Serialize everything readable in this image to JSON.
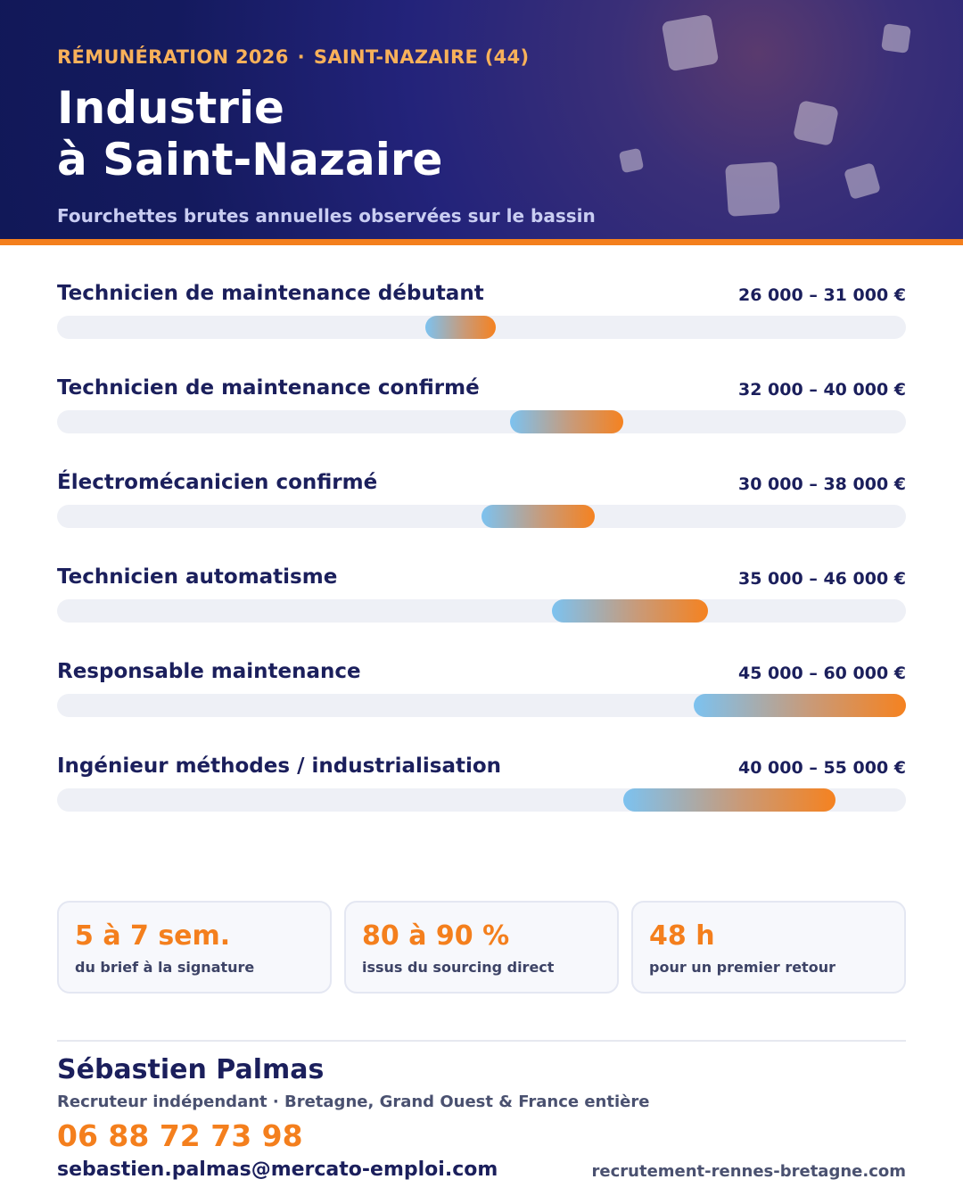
{
  "header": {
    "kicker_left": "RÉMUNÉRATION 2026",
    "kicker_sep": "·",
    "kicker_right": "SAINT-NAZAIRE (44)",
    "title_line1": "Industrie",
    "title_line2": "à Saint-Nazaire",
    "subtitle": "Fourchettes brutes annuelles observées sur le bassin"
  },
  "colors": {
    "navy": "#1b1f5c",
    "orange": "#f47f1d",
    "bar_start": "#7cc2f0",
    "bar_end": "#f58220",
    "track": "#eef0f6"
  },
  "chart_data": {
    "type": "bar",
    "orientation": "horizontal-range",
    "categories": [
      "Technicien de maintenance débutant",
      "Technicien de maintenance confirmé",
      "Électromécanicien confirmé",
      "Technicien automatisme",
      "Responsable maintenance",
      "Ingénieur méthodes / industrialisation"
    ],
    "ranges": [
      {
        "min": 26000,
        "max": 31000,
        "label": "26 000 – 31 000 €"
      },
      {
        "min": 32000,
        "max": 40000,
        "label": "32 000 – 40 000 €"
      },
      {
        "min": 30000,
        "max": 38000,
        "label": "30 000 – 38 000 €"
      },
      {
        "min": 35000,
        "max": 46000,
        "label": "35 000 – 46 000 €"
      },
      {
        "min": 45000,
        "max": 60000,
        "label": "45 000 – 60 000 €"
      },
      {
        "min": 40000,
        "max": 55000,
        "label": "40 000 – 55 000 €"
      }
    ],
    "xlim": [
      0,
      60000
    ],
    "grid": false
  },
  "stats": [
    {
      "value": "5 à 7 sem.",
      "caption": "du brief à la signature"
    },
    {
      "value": "80 à 90 %",
      "caption": "issus du sourcing direct"
    },
    {
      "value": "48 h",
      "caption": "pour un premier retour"
    }
  ],
  "contact": {
    "name": "Sébastien Palmas",
    "role": "Recruteur indépendant · Bretagne, Grand Ouest & France entière",
    "phone": "06 88 72 73 98",
    "email": "sebastien.palmas@mercato-emploi.com",
    "website": "recrutement-rennes-bretagne.com"
  }
}
